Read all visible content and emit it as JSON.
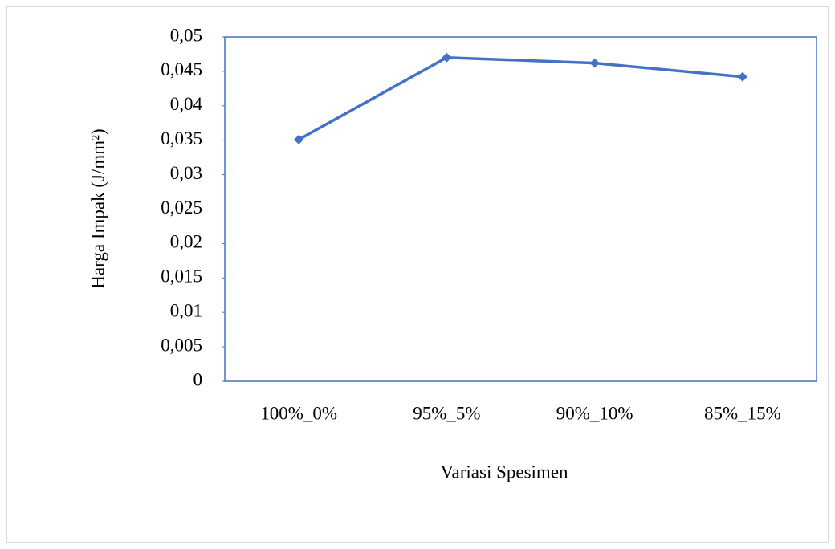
{
  "chart_data": {
    "type": "line",
    "x_label": "Variasi Spesimen",
    "y_label": "Harga Impak (J/mm²)",
    "categories": [
      "100%_0%",
      "95%_5%",
      "90%_10%",
      "85%_15%"
    ],
    "values": [
      0.0351,
      0.047,
      0.0462,
      0.0442
    ],
    "color": "#4472c4",
    "ylim": [
      0,
      0.05
    ],
    "yticks": [
      0,
      {
        "value": 0.005,
        "label": "0,005"
      },
      {
        "value": 0.01,
        "label": "0,01"
      },
      {
        "value": 0.015,
        "label": "0,015"
      },
      {
        "value": 0.02,
        "label": "0,02"
      },
      {
        "value": 0.025,
        "label": "0,025"
      },
      {
        "value": 0.03,
        "label": "0,03"
      },
      {
        "value": 0.035,
        "label": "0,035"
      },
      {
        "value": 0.04,
        "label": "0,04"
      },
      {
        "value": 0.045,
        "label": "0,045"
      },
      {
        "value": 0.05,
        "label": "0,05"
      }
    ],
    "grid": false
  }
}
